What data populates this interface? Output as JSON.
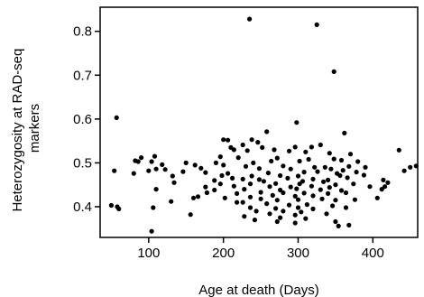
{
  "chart_data": {
    "type": "scatter",
    "title": "",
    "xlabel": "Age at death (Days)",
    "ylabel_lines": [
      "Heterozygosity at RAD-seq",
      "markers"
    ],
    "xlim": [
      35,
      460
    ],
    "ylim": [
      0.33,
      0.855
    ],
    "xticks": [
      100,
      200,
      300,
      400
    ],
    "yticks": [
      0.4,
      0.5,
      0.6,
      0.7,
      0.8
    ],
    "tick_labels_x": [
      "100",
      "200",
      "300",
      "400"
    ],
    "tick_labels_y": [
      "0.4",
      "0.5",
      "0.6",
      "0.7",
      "0.8"
    ],
    "grid": false,
    "legend": "none",
    "point_color": "#000000",
    "points": [
      [
        235,
        0.828
      ],
      [
        325,
        0.815
      ],
      [
        348,
        0.708
      ],
      [
        57,
        0.603
      ],
      [
        298,
        0.592
      ],
      [
        258,
        0.571
      ],
      [
        362,
        0.568
      ],
      [
        200,
        0.553
      ],
      [
        206,
        0.552
      ],
      [
        238,
        0.553
      ],
      [
        246,
        0.547
      ],
      [
        226,
        0.541
      ],
      [
        330,
        0.541
      ],
      [
        296,
        0.536
      ],
      [
        318,
        0.536
      ],
      [
        210,
        0.535
      ],
      [
        252,
        0.535
      ],
      [
        214,
        0.53
      ],
      [
        268,
        0.53
      ],
      [
        435,
        0.529
      ],
      [
        232,
        0.528
      ],
      [
        288,
        0.527
      ],
      [
        310,
        0.525
      ],
      [
        342,
        0.522
      ],
      [
        370,
        0.52
      ],
      [
        90,
        0.512
      ],
      [
        108,
        0.515
      ],
      [
        196,
        0.514
      ],
      [
        220,
        0.512
      ],
      [
        272,
        0.511
      ],
      [
        348,
        0.509
      ],
      [
        82,
        0.505
      ],
      [
        86,
        0.503
      ],
      [
        104,
        0.503
      ],
      [
        150,
        0.5
      ],
      [
        190,
        0.5
      ],
      [
        240,
        0.5
      ],
      [
        264,
        0.504
      ],
      [
        302,
        0.504
      ],
      [
        314,
        0.508
      ],
      [
        358,
        0.506
      ],
      [
        380,
        0.503
      ],
      [
        118,
        0.496
      ],
      [
        162,
        0.495
      ],
      [
        200,
        0.495
      ],
      [
        230,
        0.492
      ],
      [
        280,
        0.493
      ],
      [
        322,
        0.49
      ],
      [
        336,
        0.49
      ],
      [
        368,
        0.492
      ],
      [
        390,
        0.49
      ],
      [
        450,
        0.49
      ],
      [
        458,
        0.493
      ],
      [
        110,
        0.486
      ],
      [
        122,
        0.485
      ],
      [
        170,
        0.488
      ],
      [
        248,
        0.487
      ],
      [
        290,
        0.486
      ],
      [
        344,
        0.486
      ],
      [
        360,
        0.483
      ],
      [
        54,
        0.482
      ],
      [
        100,
        0.482
      ],
      [
        146,
        0.48
      ],
      [
        176,
        0.478
      ],
      [
        206,
        0.476
      ],
      [
        260,
        0.477
      ],
      [
        308,
        0.479
      ],
      [
        326,
        0.48
      ],
      [
        352,
        0.476
      ],
      [
        378,
        0.479
      ],
      [
        442,
        0.482
      ],
      [
        80,
        0.476
      ],
      [
        132,
        0.47
      ],
      [
        198,
        0.471
      ],
      [
        238,
        0.47
      ],
      [
        276,
        0.471
      ],
      [
        300,
        0.47
      ],
      [
        356,
        0.471
      ],
      [
        388,
        0.472
      ],
      [
        212,
        0.465
      ],
      [
        226,
        0.463
      ],
      [
        248,
        0.462
      ],
      [
        286,
        0.465
      ],
      [
        320,
        0.463
      ],
      [
        340,
        0.461
      ],
      [
        366,
        0.466
      ],
      [
        188,
        0.46
      ],
      [
        254,
        0.458
      ],
      [
        306,
        0.458
      ],
      [
        334,
        0.457
      ],
      [
        414,
        0.461
      ],
      [
        134,
        0.455
      ],
      [
        196,
        0.452
      ],
      [
        236,
        0.452
      ],
      [
        270,
        0.453
      ],
      [
        302,
        0.452
      ],
      [
        350,
        0.45
      ],
      [
        374,
        0.452
      ],
      [
        420,
        0.455
      ],
      [
        176,
        0.445
      ],
      [
        214,
        0.447
      ],
      [
        262,
        0.446
      ],
      [
        290,
        0.445
      ],
      [
        318,
        0.447
      ],
      [
        342,
        0.444
      ],
      [
        396,
        0.446
      ],
      [
        416,
        0.446
      ],
      [
        110,
        0.44
      ],
      [
        188,
        0.438
      ],
      [
        228,
        0.44
      ],
      [
        276,
        0.438
      ],
      [
        298,
        0.441
      ],
      [
        330,
        0.439
      ],
      [
        358,
        0.437
      ],
      [
        412,
        0.44
      ],
      [
        178,
        0.432
      ],
      [
        218,
        0.43
      ],
      [
        250,
        0.433
      ],
      [
        280,
        0.432
      ],
      [
        308,
        0.431
      ],
      [
        340,
        0.43
      ],
      [
        364,
        0.432
      ],
      [
        266,
        0.426
      ],
      [
        296,
        0.424
      ],
      [
        320,
        0.425
      ],
      [
        236,
        0.422
      ],
      [
        160,
        0.42
      ],
      [
        166,
        0.423
      ],
      [
        202,
        0.42
      ],
      [
        250,
        0.418
      ],
      [
        272,
        0.415
      ],
      [
        300,
        0.416
      ],
      [
        332,
        0.418
      ],
      [
        350,
        0.415
      ],
      [
        376,
        0.416
      ],
      [
        406,
        0.42
      ],
      [
        130,
        0.412
      ],
      [
        218,
        0.41
      ],
      [
        226,
        0.41
      ],
      [
        258,
        0.407
      ],
      [
        288,
        0.404
      ],
      [
        312,
        0.405
      ],
      [
        346,
        0.402
      ],
      [
        50,
        0.403
      ],
      [
        58,
        0.4
      ],
      [
        106,
        0.398
      ],
      [
        60,
        0.395
      ],
      [
        236,
        0.398
      ],
      [
        270,
        0.396
      ],
      [
        300,
        0.398
      ],
      [
        320,
        0.395
      ],
      [
        364,
        0.398
      ],
      [
        244,
        0.39
      ],
      [
        280,
        0.39
      ],
      [
        304,
        0.388
      ],
      [
        156,
        0.382
      ],
      [
        262,
        0.384
      ],
      [
        296,
        0.381
      ],
      [
        338,
        0.384
      ],
      [
        228,
        0.378
      ],
      [
        276,
        0.375
      ],
      [
        310,
        0.373
      ],
      [
        242,
        0.37
      ],
      [
        272,
        0.366
      ],
      [
        296,
        0.363
      ],
      [
        350,
        0.366
      ],
      [
        354,
        0.356
      ],
      [
        368,
        0.358
      ],
      [
        104,
        0.344
      ]
    ]
  }
}
